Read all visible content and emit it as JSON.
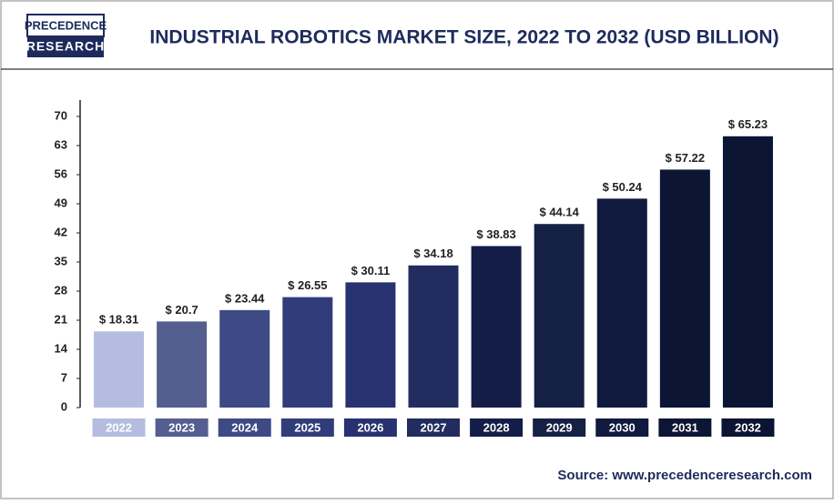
{
  "logo": {
    "line1": "PRECEDENCE",
    "line2": "RESEARCH"
  },
  "source": "Source: www.precedenceresearch.com",
  "chart_data": {
    "type": "bar",
    "title": "INDUSTRIAL ROBOTICS MARKET SIZE, 2022 TO 2032 (USD BILLION)",
    "categories": [
      "2022",
      "2023",
      "2024",
      "2025",
      "2026",
      "2027",
      "2028",
      "2029",
      "2030",
      "2031",
      "2032"
    ],
    "values": [
      18.31,
      20.7,
      23.44,
      26.55,
      30.11,
      34.18,
      38.83,
      44.14,
      50.24,
      57.22,
      65.23
    ],
    "value_labels": [
      "$ 18.31",
      "$ 20.7",
      "$ 23.44",
      "$ 26.55",
      "$ 30.11",
      "$ 34.18",
      "$ 38.83",
      "$ 44.14",
      "$ 50.24",
      "$ 57.22",
      "$ 65.23"
    ],
    "colors": [
      "#b4bde0",
      "#545f8f",
      "#3e4a85",
      "#303d7a",
      "#283270",
      "#222c5e",
      "#141d48",
      "#152045",
      "#101a3e",
      "#0d1535",
      "#0b1433"
    ],
    "ylim": [
      0,
      70
    ],
    "yticks": [
      0,
      7,
      14,
      21,
      28,
      35,
      42,
      49,
      56,
      63,
      70
    ],
    "grid": false
  }
}
